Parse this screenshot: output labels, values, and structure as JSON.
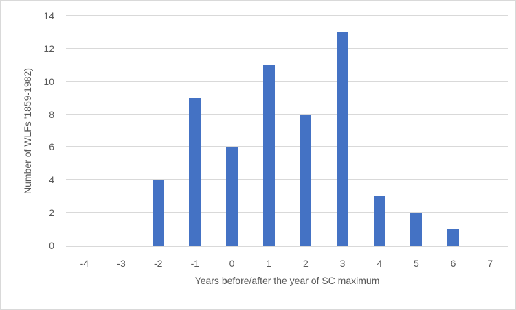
{
  "chart_data": {
    "type": "bar",
    "title": "",
    "categories": [
      "-4",
      "-3",
      "-2",
      "-1",
      "0",
      "1",
      "2",
      "3",
      "4",
      "5",
      "6",
      "7"
    ],
    "values": [
      0,
      0,
      4,
      9,
      6,
      11,
      8,
      13,
      3,
      2,
      1,
      0
    ],
    "xlabel": "Years before/after the year of SC maximum",
    "ylabel": "Number of WLFs '1859-1982)",
    "ylim": [
      0,
      14
    ],
    "yticks": [
      0,
      2,
      4,
      6,
      8,
      10,
      12,
      14
    ],
    "grid": "horizontal",
    "legend": "none",
    "colors": {
      "bar": "#4472C4",
      "gridline": "#D9D9D9",
      "axis_line": "#D9D9D9",
      "text": "#595959",
      "background": "#FFFFFF",
      "frame_border": "#D9D9D9"
    }
  }
}
